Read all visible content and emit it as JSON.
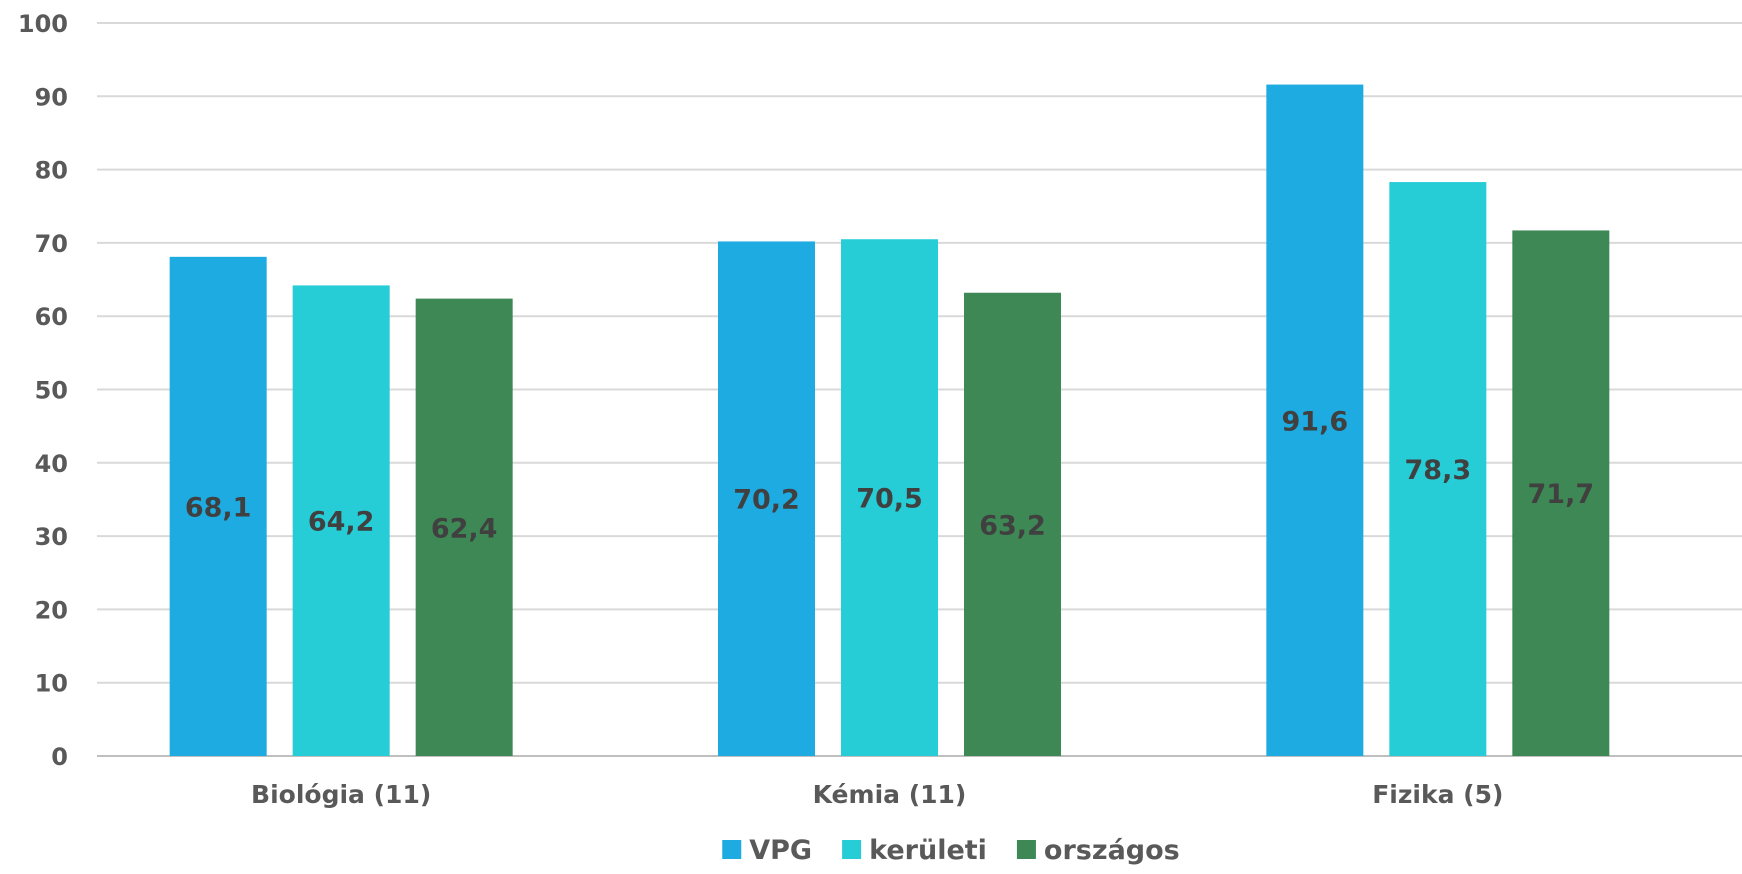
{
  "chart_data": {
    "type": "bar",
    "categories": [
      "Biológia (11)",
      "Kémia (11)",
      "Fizika (5)"
    ],
    "series": [
      {
        "name": "VPG",
        "color": "#1DABE1",
        "values": [
          68.1,
          70.2,
          91.6
        ],
        "labels": [
          "68,1",
          "70,2",
          "91,6"
        ]
      },
      {
        "name": "kerületi",
        "color": "#26CDD6",
        "values": [
          64.2,
          70.5,
          78.3
        ],
        "labels": [
          "64,2",
          "70,5",
          "78,3"
        ]
      },
      {
        "name": "országos",
        "color": "#3D8854",
        "values": [
          62.4,
          63.2,
          71.7
        ],
        "labels": [
          "62,4",
          "63,2",
          "71,7"
        ]
      }
    ],
    "ylim": [
      0,
      100
    ],
    "yticks": [
      "0",
      "10",
      "20",
      "30",
      "40",
      "50",
      "60",
      "70",
      "80",
      "90",
      "100"
    ],
    "title": "",
    "xlabel": "",
    "ylabel": "",
    "grid": true,
    "legend_position": "bottom-center"
  }
}
